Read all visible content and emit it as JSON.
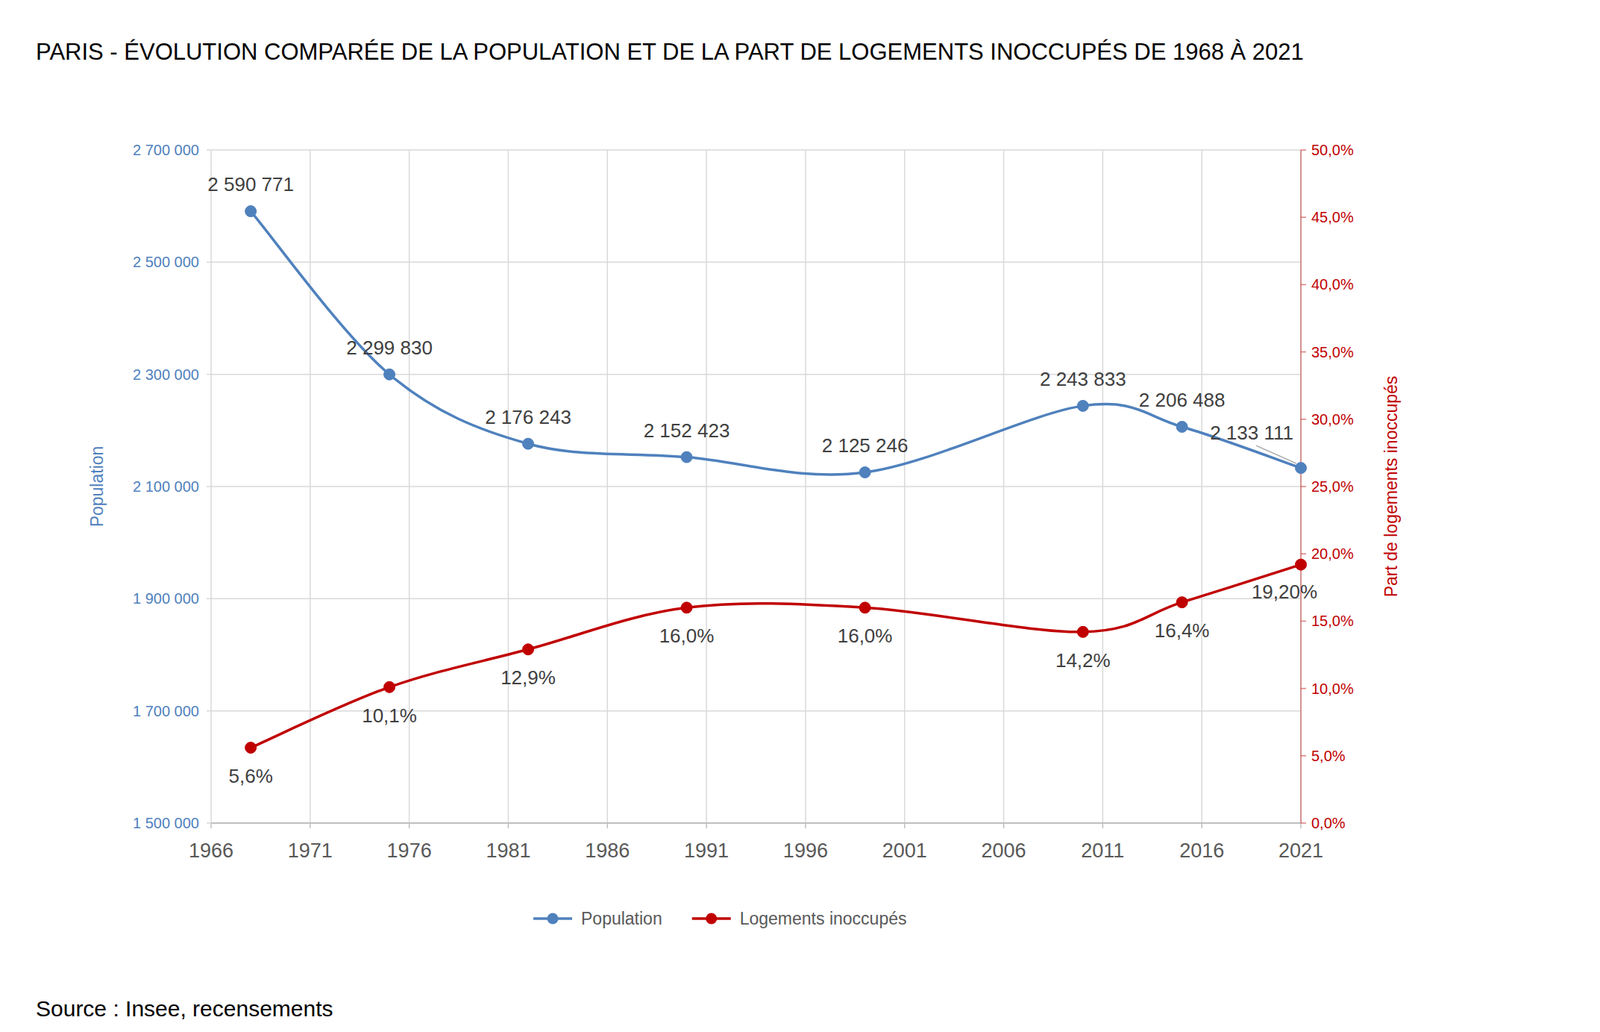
{
  "chart_data": {
    "type": "line",
    "title": "PARIS - ÉVOLUTION COMPARÉE DE LA POPULATION ET DE LA PART DE LOGEMENTS INOCCUPÉS DE 1968 À 2021",
    "source": "Source : Insee, recensements",
    "x": [
      1968,
      1975,
      1982,
      1990,
      1999,
      2010,
      2015,
      2021
    ],
    "xlim": [
      1966,
      2021
    ],
    "xticks": [
      1966,
      1971,
      1976,
      1981,
      1986,
      1991,
      1996,
      2001,
      2006,
      2011,
      2016,
      2021
    ],
    "y_label": "Population",
    "y2_label": "Part de logements inoccupés",
    "ylim": [
      1500000,
      2700000
    ],
    "yticks": [
      {
        "value": 1500000,
        "label": "1 500 000"
      },
      {
        "value": 1700000,
        "label": "1 700 000"
      },
      {
        "value": 1900000,
        "label": "1 900 000"
      },
      {
        "value": 2100000,
        "label": "2 100 000"
      },
      {
        "value": 2300000,
        "label": "2 300 000"
      },
      {
        "value": 2500000,
        "label": "2 500 000"
      },
      {
        "value": 2700000,
        "label": "2 700 000"
      }
    ],
    "y2lim": [
      0,
      50
    ],
    "y2ticks": [
      {
        "value": 0,
        "label": "0,0%"
      },
      {
        "value": 5,
        "label": "5,0%"
      },
      {
        "value": 10,
        "label": "10,0%"
      },
      {
        "value": 15,
        "label": "15,0%"
      },
      {
        "value": 20,
        "label": "20,0%"
      },
      {
        "value": 25,
        "label": "25,0%"
      },
      {
        "value": 30,
        "label": "30,0%"
      },
      {
        "value": 35,
        "label": "35,0%"
      },
      {
        "value": 40,
        "label": "40,0%"
      },
      {
        "value": 45,
        "label": "45,0%"
      },
      {
        "value": 50,
        "label": "50,0%"
      }
    ],
    "grid": true,
    "legend": "bottom",
    "data_labels": true,
    "series": [
      {
        "name": "Population",
        "color": "#4f81bd",
        "marker": "circle",
        "values": [
          2590771,
          2299830,
          2176243,
          2152423,
          2125246,
          2243833,
          2206488,
          2133111
        ],
        "value_labels": [
          "2 590 771",
          "2 299 830",
          "2 176 243",
          "2 152 423",
          "2 125 246",
          "2 243 833",
          "2 206 488",
          "2 133 111"
        ]
      },
      {
        "name": "Logements inoccupés",
        "color": "#c00000",
        "marker": "circle",
        "axis": "y2",
        "values": [
          5.6,
          10.1,
          12.9,
          16.0,
          16.0,
          14.2,
          16.4,
          19.2
        ],
        "value_labels": [
          "5,6%",
          "10,1%",
          "12,9%",
          "16,0%",
          "16,0%",
          "14,2%",
          "16,4%",
          "19,20%"
        ]
      }
    ]
  }
}
